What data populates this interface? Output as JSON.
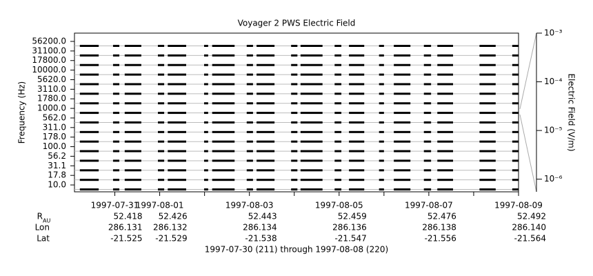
{
  "chart_data": {
    "type": "coverage",
    "title": "Voyager 2 PWS Electric Field",
    "ylabel": "Frequency (Hz)",
    "y2label": "Electric Field (V/m)",
    "footer": "1997-07-30 (211) through 1997-08-08 (220)",
    "channels": [
      "56200.0",
      "31100.0",
      "17800.0",
      "10000.0",
      "5620.0",
      "3110.0",
      "1780.0",
      "1000.0",
      "562.0",
      "311.0",
      "178.0",
      "100.0",
      "56.2",
      "31.1",
      "17.8",
      "10.0"
    ],
    "xlim": [
      211.1,
      221
    ],
    "xticks": [
      {
        "value": 212,
        "label": "1997-07-31"
      },
      {
        "value": 213,
        "label": "1997-08-01"
      },
      {
        "value": 215,
        "label": "1997-08-03"
      },
      {
        "value": 217,
        "label": "1997-08-05"
      },
      {
        "value": 219,
        "label": "1997-08-07"
      },
      {
        "value": 221,
        "label": "1997-08-09"
      }
    ],
    "xminorticks": [
      214,
      216,
      218,
      220
    ],
    "intervals": [
      [
        211.22,
        211.64
      ],
      [
        211.96,
        212.1
      ],
      [
        212.22,
        212.59
      ],
      [
        212.96,
        213.1
      ],
      [
        213.18,
        213.59
      ],
      [
        213.99,
        214.08
      ],
      [
        214.17,
        214.67
      ],
      [
        214.94,
        215.08
      ],
      [
        215.16,
        215.56
      ],
      [
        215.93,
        216.07
      ],
      [
        216.14,
        216.63
      ],
      [
        216.9,
        217.05
      ],
      [
        217.22,
        217.56
      ],
      [
        217.89,
        218.0
      ],
      [
        218.22,
        218.59
      ],
      [
        218.89,
        219.05
      ],
      [
        219.19,
        219.54
      ],
      [
        220.13,
        220.49
      ],
      [
        220.86,
        221.0
      ]
    ],
    "y2lim": [
      5.5e-07,
      0.001
    ],
    "y2scale": "log",
    "y2ticks": [
      {
        "value": 0.001,
        "label": "10⁻³"
      },
      {
        "value": 0.0001,
        "label": "10⁻⁴"
      },
      {
        "value": 1e-05,
        "label": "10⁻⁵"
      },
      {
        "value": 1e-06,
        "label": "10⁻⁶"
      }
    ],
    "ephemeris": [
      {
        "label": "R",
        "sub": "AU",
        "values": [
          "52.418",
          "52.426",
          "52.443",
          "52.459",
          "52.476",
          "52.492"
        ]
      },
      {
        "label": "Lon",
        "values": [
          "286.131",
          "286.132",
          "286.134",
          "286.136",
          "286.138",
          "286.140"
        ]
      },
      {
        "label": "Lat",
        "values": [
          "-21.525",
          "-21.529",
          "-21.538",
          "-21.547",
          "-21.556",
          "-21.564"
        ]
      }
    ],
    "bar_color": "#000000",
    "row_color": "#bbbbbb"
  }
}
